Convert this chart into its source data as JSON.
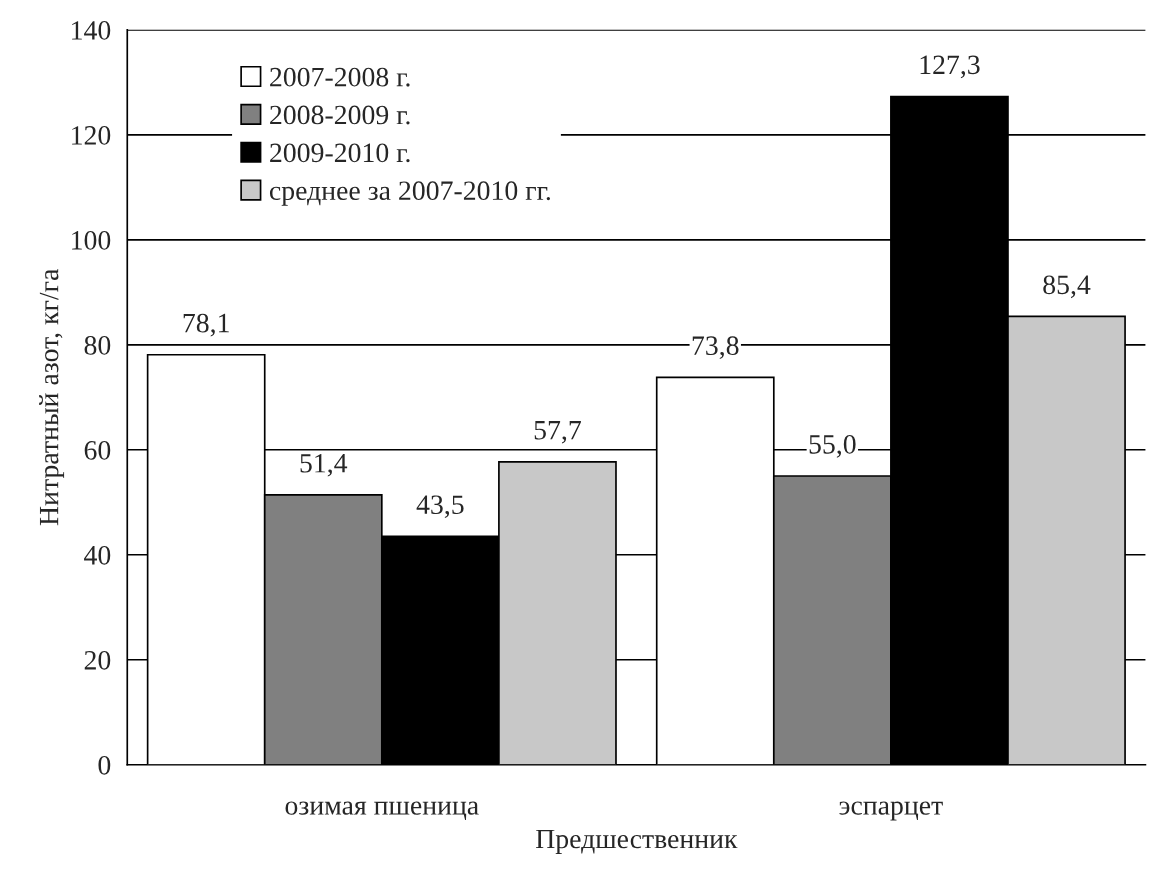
{
  "chart_data": {
    "type": "bar",
    "xlabel": "Предшественник",
    "ylabel": "Нитратный азот, кг/га",
    "categories": [
      "озимая пшеница",
      "эспарцет"
    ],
    "series": [
      {
        "name": "2007-2008 г.",
        "color": "#ffffff",
        "values": [
          78.1,
          73.8
        ],
        "value_labels": [
          "78,1",
          "73,8"
        ]
      },
      {
        "name": "2008-2009 г.",
        "color": "#808080",
        "values": [
          51.4,
          55.0
        ],
        "value_labels": [
          "51,4",
          "55,0"
        ]
      },
      {
        "name": "2009-2010 г.",
        "color": "#000000",
        "values": [
          43.5,
          127.3
        ],
        "value_labels": [
          "43,5",
          "127,3"
        ]
      },
      {
        "name": "среднее за 2007-2010 гг.",
        "color": "#c8c8c8",
        "values": [
          57.7,
          85.4
        ],
        "value_labels": [
          "57,7",
          "85,4"
        ]
      }
    ],
    "ylim": [
      0,
      140
    ],
    "yticks": [
      0,
      20,
      40,
      60,
      80,
      100,
      120,
      140
    ],
    "grid": "y",
    "legend": "top left"
  }
}
